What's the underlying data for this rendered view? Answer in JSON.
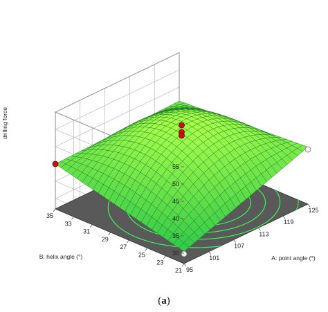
{
  "chart_data": {
    "type": "surface3d",
    "zlabel": "drilling force",
    "xlabel": "A:  point angle (°)",
    "ylabel": "B: helix angle (°)",
    "x_ticks": [
      "95",
      "101",
      "107",
      "113",
      "119",
      "125"
    ],
    "y_ticks": [
      "21",
      "23",
      "25",
      "27",
      "29",
      "31",
      "33",
      "35"
    ],
    "z_ticks": [
      "30",
      "35",
      "40",
      "45",
      "50",
      "55"
    ],
    "xlim": [
      95,
      125
    ],
    "ylim": [
      21,
      35
    ],
    "zlim": [
      27,
      55
    ],
    "surface_points": [
      {
        "x": 95,
        "y": 21,
        "z": 30.5
      },
      {
        "x": 95,
        "y": 35,
        "z": 40.0
      },
      {
        "x": 125,
        "y": 21,
        "z": 43.5
      },
      {
        "x": 125,
        "y": 35,
        "z": 41.0
      },
      {
        "x": 110,
        "y": 28,
        "z": 50.0
      }
    ],
    "design_points": [
      {
        "x": 95,
        "y": 35,
        "z": 40.0,
        "above": true
      },
      {
        "x": 110,
        "y": 28,
        "z": 50.5,
        "above": true
      },
      {
        "x": 110,
        "y": 28,
        "z": 48.5,
        "above": true
      },
      {
        "x": 110,
        "y": 28,
        "z": 47.5,
        "above": true
      },
      {
        "x": 125,
        "y": 21,
        "z": 42.8,
        "above": false
      },
      {
        "x": 95,
        "y": 21,
        "z": 29.8,
        "above": false
      }
    ],
    "colors": {
      "surface_low": "#2ec84a",
      "surface_high": "#aaff4a",
      "floor": "#595959",
      "contour": "#39ff5a",
      "point_above": "#cc1111",
      "point_below": "#f2f2f2"
    }
  },
  "caption": {
    "open": "(",
    "letter": "a",
    "close": ")"
  }
}
